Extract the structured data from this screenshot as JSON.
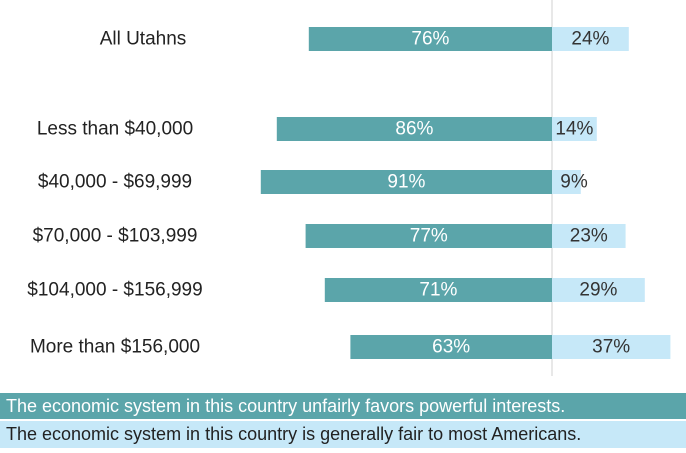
{
  "chart_data": {
    "type": "bar",
    "categories": [
      "All Utahns",
      "Less than $40,000",
      "$40,000 - $69,999",
      "$70,000 - $103,999",
      "$104,000 - $156,999",
      "More than $156,000"
    ],
    "series": [
      {
        "name": "The economic system in this country unfairly favors powerful interests.",
        "color": "#5ba5aa",
        "values": [
          76,
          86,
          91,
          77,
          71,
          63
        ],
        "value_labels": [
          "76%",
          "86%",
          "91%",
          "77%",
          "71%",
          "63%"
        ]
      },
      {
        "name": "The economic system in this country is generally fair to most Americans.",
        "color": "#c6e8f8",
        "values": [
          24,
          14,
          9,
          23,
          29,
          37
        ],
        "value_labels": [
          "24%",
          "14%",
          "9%",
          "23%",
          "29%",
          "37%"
        ]
      }
    ]
  }
}
